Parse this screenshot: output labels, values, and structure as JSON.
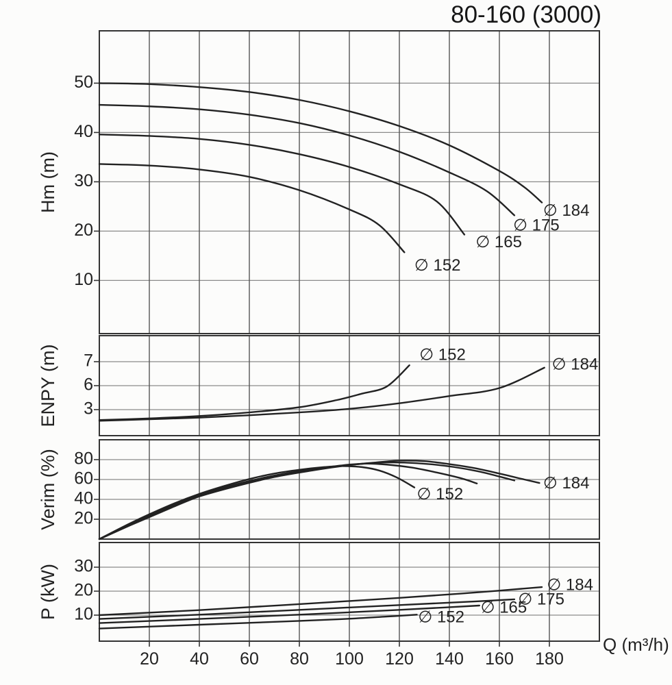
{
  "title": "80-160 (3000)",
  "colors": {
    "curve": "#222222",
    "grid_h": "#8a8a8a",
    "grid_v": "#555555",
    "border": "#333333",
    "text": "#222222"
  },
  "x_axis": {
    "label": "Q (m³/h)",
    "range": [
      0,
      200
    ],
    "ticks": [
      20,
      40,
      60,
      80,
      100,
      120,
      140,
      160,
      180
    ]
  },
  "chart_data": [
    {
      "id": "head",
      "type": "line",
      "ylabel": "Hm (m)",
      "ylim": [
        0,
        60
      ],
      "yticks": [
        10,
        20,
        30,
        40,
        50
      ],
      "series": [
        {
          "name": "∅ 184",
          "points": [
            [
              0,
              50
            ],
            [
              20,
              49.8
            ],
            [
              40,
              49.2
            ],
            [
              60,
              48.2
            ],
            [
              80,
              46.6
            ],
            [
              100,
              44.3
            ],
            [
              120,
              41.3
            ],
            [
              140,
              37.4
            ],
            [
              160,
              32.2
            ],
            [
              170,
              28.9
            ],
            [
              177,
              25.8
            ]
          ]
        },
        {
          "name": "∅ 175",
          "points": [
            [
              0,
              45.6
            ],
            [
              20,
              45.3
            ],
            [
              40,
              44.7
            ],
            [
              60,
              43.6
            ],
            [
              80,
              41.9
            ],
            [
              100,
              39.4
            ],
            [
              120,
              36.1
            ],
            [
              140,
              31.9
            ],
            [
              155,
              28.1
            ],
            [
              166,
              23.2
            ]
          ]
        },
        {
          "name": "∅ 165",
          "points": [
            [
              0,
              39.6
            ],
            [
              20,
              39.3
            ],
            [
              40,
              38.7
            ],
            [
              60,
              37.5
            ],
            [
              80,
              35.6
            ],
            [
              100,
              33.0
            ],
            [
              120,
              29.5
            ],
            [
              135,
              26.0
            ],
            [
              146,
              19.3
            ]
          ]
        },
        {
          "name": "∅ 152",
          "points": [
            [
              0,
              33.6
            ],
            [
              20,
              33.3
            ],
            [
              40,
              32.5
            ],
            [
              60,
              31.0
            ],
            [
              80,
              28.3
            ],
            [
              100,
              24.4
            ],
            [
              112,
              21.2
            ],
            [
              122,
              15.7
            ]
          ]
        }
      ],
      "annotations": [
        {
          "text": "∅ 184",
          "q": 177.5,
          "v": 24.0
        },
        {
          "text": "∅ 175",
          "q": 165.5,
          "v": 21.0
        },
        {
          "text": "∅ 165",
          "q": 150.5,
          "v": 17.6
        },
        {
          "text": "∅ 152",
          "q": 126.0,
          "v": 12.9
        }
      ]
    },
    {
      "id": "npsh",
      "type": "line",
      "ylabel": "ENPY (m)",
      "ylim": [
        0,
        8
      ],
      "yticks": [
        3,
        6,
        7
      ],
      "series": [
        {
          "name": "∅ 152",
          "points": [
            [
              0,
              1.7
            ],
            [
              20,
              1.9
            ],
            [
              40,
              2.2
            ],
            [
              60,
              2.65
            ],
            [
              80,
              3.3
            ],
            [
              95,
              4.2
            ],
            [
              105,
              5.0
            ],
            [
              115,
              5.9
            ],
            [
              124,
              6.85
            ]
          ]
        },
        {
          "name": "∅ 184",
          "points": [
            [
              0,
              1.6
            ],
            [
              20,
              1.8
            ],
            [
              40,
              2.0
            ],
            [
              60,
              2.3
            ],
            [
              80,
              2.65
            ],
            [
              100,
              3.1
            ],
            [
              120,
              3.8
            ],
            [
              140,
              4.7
            ],
            [
              160,
              5.7
            ],
            [
              178,
              6.75
            ]
          ]
        }
      ],
      "annotations": [
        {
          "text": "∅ 152",
          "q": 128,
          "v": 7.25
        },
        {
          "text": "∅ 184",
          "q": 181,
          "v": 6.85
        }
      ]
    },
    {
      "id": "eff",
      "type": "line",
      "ylabel": "Verim (%)",
      "ylim": [
        0,
        100
      ],
      "yticks": [
        20,
        40,
        60,
        80
      ],
      "series": [
        {
          "name": "∅ 184",
          "points": [
            [
              0,
              0
            ],
            [
              10,
              11.5
            ],
            [
              20,
              23
            ],
            [
              30,
              34
            ],
            [
              40,
              43
            ],
            [
              55,
              53.5
            ],
            [
              70,
              62.5
            ],
            [
              85,
              69
            ],
            [
              100,
              74.5
            ],
            [
              110,
              77
            ],
            [
              120,
              79
            ],
            [
              130,
              78.5
            ],
            [
              140,
              75.5
            ],
            [
              150,
              71.5
            ],
            [
              160,
              66
            ],
            [
              170,
              60
            ],
            [
              176,
              56.5
            ]
          ]
        },
        {
          "name": "∅ 175",
          "points": [
            [
              0,
              0
            ],
            [
              12,
              13.5
            ],
            [
              25,
              27.5
            ],
            [
              40,
              43
            ],
            [
              55,
              54
            ],
            [
              70,
              63
            ],
            [
              85,
              69.5
            ],
            [
              100,
              74.5
            ],
            [
              112,
              77
            ],
            [
              122,
              77
            ],
            [
              132,
              75.5
            ],
            [
              142,
              72.5
            ],
            [
              152,
              68
            ],
            [
              160,
              63
            ],
            [
              166,
              59
            ]
          ]
        },
        {
          "name": "∅ 165",
          "points": [
            [
              0,
              0
            ],
            [
              10,
              12.5
            ],
            [
              20,
              24
            ],
            [
              30,
              35
            ],
            [
              40,
              44
            ],
            [
              50,
              52
            ],
            [
              60,
              58.5
            ],
            [
              70,
              64
            ],
            [
              80,
              68.5
            ],
            [
              90,
              72
            ],
            [
              100,
              75
            ],
            [
              107,
              76
            ],
            [
              115,
              75
            ],
            [
              125,
              72
            ],
            [
              135,
              67
            ],
            [
              145,
              61
            ],
            [
              151,
              56
            ]
          ]
        },
        {
          "name": "∅ 152",
          "points": [
            [
              0,
              0
            ],
            [
              10,
              13
            ],
            [
              20,
              25
            ],
            [
              30,
              36
            ],
            [
              40,
              45.5
            ],
            [
              50,
              53.5
            ],
            [
              60,
              60.5
            ],
            [
              70,
              66
            ],
            [
              80,
              69.8
            ],
            [
              90,
              72.5
            ],
            [
              97,
              73.5
            ],
            [
              105,
              72.5
            ],
            [
              112,
              69
            ],
            [
              119,
              62
            ],
            [
              126,
              52
            ]
          ]
        }
      ],
      "annotations": [
        {
          "text": "∅ 152",
          "q": 127.0,
          "v": 44.5
        },
        {
          "text": "∅ 184",
          "q": 177.5,
          "v": 55.5
        }
      ]
    },
    {
      "id": "power",
      "type": "line",
      "ylabel": "P (kW)",
      "ylim": [
        0,
        40
      ],
      "yticks": [
        10,
        20,
        30
      ],
      "series": [
        {
          "name": "∅ 184",
          "points": [
            [
              0,
              10.0
            ],
            [
              40,
              12.1
            ],
            [
              80,
              14.6
            ],
            [
              120,
              17.2
            ],
            [
              150,
              19.4
            ],
            [
              177,
              21.7
            ]
          ]
        },
        {
          "name": "∅ 175",
          "points": [
            [
              0,
              8.4
            ],
            [
              40,
              10.2
            ],
            [
              80,
              12.2
            ],
            [
              120,
              14.2
            ],
            [
              150,
              15.7
            ],
            [
              166,
              16.6
            ]
          ]
        },
        {
          "name": "∅ 165",
          "points": [
            [
              0,
              6.7
            ],
            [
              40,
              8.4
            ],
            [
              80,
              10.2
            ],
            [
              120,
              12.2
            ],
            [
              140,
              13.3
            ],
            [
              152,
              14.0
            ]
          ]
        },
        {
          "name": "∅ 152",
          "points": [
            [
              0,
              4.4
            ],
            [
              40,
              6.0
            ],
            [
              80,
              7.6
            ],
            [
              100,
              8.5
            ],
            [
              115,
              9.4
            ],
            [
              127,
              10.2
            ]
          ]
        }
      ],
      "annotations": [
        {
          "text": "∅ 184",
          "q": 179.0,
          "v": 22.3
        },
        {
          "text": "∅ 175",
          "q": 167.5,
          "v": 16.2
        },
        {
          "text": "∅ 165",
          "q": 152.5,
          "v": 12.8
        },
        {
          "text": "∅ 152",
          "q": 127.5,
          "v": 8.8
        }
      ]
    }
  ]
}
